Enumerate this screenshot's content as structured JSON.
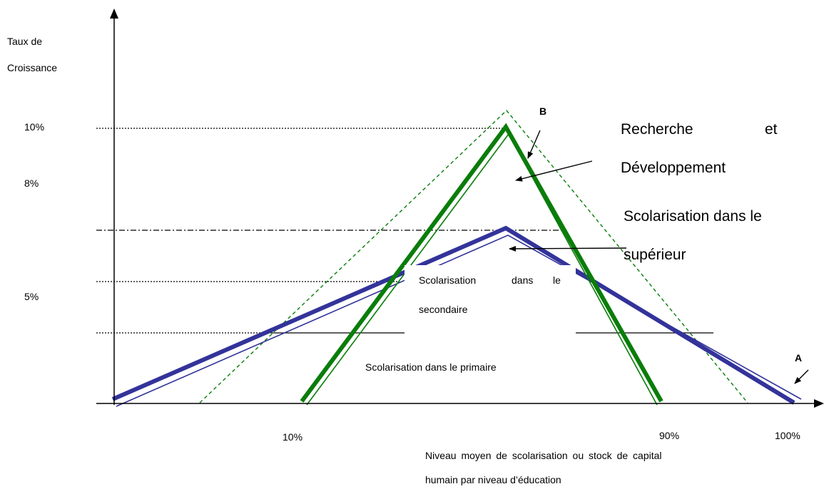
{
  "y_axis_label": [
    "Taux de",
    "Croissance"
  ],
  "y_ticks": [
    "10%",
    "8%",
    "5%"
  ],
  "x_ticks": [
    "10%",
    "90%",
    "100%"
  ],
  "x_axis_label": [
    "Niveau moyen de scolarisation ou stock de capital",
    "humain par niveau d’éducation"
  ],
  "curve_labels": {
    "a": "A",
    "b": "B"
  },
  "annotations": {
    "rd": [
      "Recherche",
      "et",
      "Développement"
    ],
    "superieur": [
      "Scolarisation dans le",
      "supérieur"
    ],
    "secondaire": [
      "Scolarisation",
      "dans",
      "le",
      "secondaire"
    ],
    "primaire": "Scolarisation dans le primaire"
  },
  "colors": {
    "curve_a": "#33339a",
    "curve_b": "#0a7d0a",
    "axis": "#000000"
  }
}
